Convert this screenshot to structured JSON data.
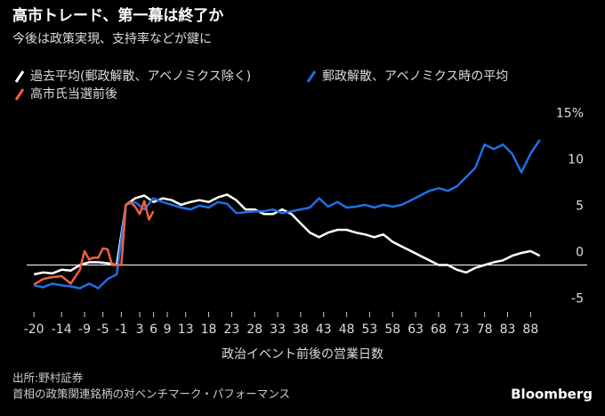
{
  "chart_data": {
    "type": "line",
    "title": "高市トレード、第一幕は終了か",
    "subtitle": "今後は政策実現、支持率などが鍵に",
    "x_label": "政治イベント前後の営業日数",
    "source": "出所:野村証券",
    "note": "首相の政策関連銘柄の対ベンチマーク・パフォーマンス",
    "brand": "Bloomberg",
    "xlim": [
      -21,
      92
    ],
    "xticks": [
      -20,
      -14,
      -9,
      -5,
      -1,
      3,
      6,
      9,
      13,
      18,
      23,
      28,
      33,
      38,
      43,
      48,
      53,
      58,
      63,
      68,
      73,
      78,
      83,
      88
    ],
    "ylim": [
      -6,
      16
    ],
    "yticks": [
      -5,
      0,
      5,
      10,
      {
        "value": 15,
        "label": "15%"
      }
    ],
    "series": [
      {
        "name": "過去平均(郵政解散、アベノミクス除く)",
        "color": "#ffffff",
        "x": [
          -20,
          -18,
          -16,
          -14,
          -12,
          -10,
          -8,
          -6,
          -4,
          -2,
          0,
          2,
          4,
          6,
          8,
          10,
          12,
          14,
          16,
          18,
          20,
          22,
          24,
          26,
          28,
          30,
          32,
          34,
          36,
          38,
          40,
          42,
          44,
          46,
          48,
          50,
          52,
          54,
          56,
          58,
          60,
          62,
          64,
          66,
          68,
          70,
          72,
          74,
          76,
          78,
          80,
          82,
          84,
          86,
          88,
          90
        ],
        "values": [
          -1,
          -0.8,
          -0.9,
          -0.5,
          -0.6,
          0,
          0.3,
          0.3,
          0.2,
          0,
          6.5,
          7.2,
          7.5,
          6.8,
          7.2,
          7,
          6.5,
          6.8,
          7,
          6.8,
          7.3,
          7.6,
          7,
          6,
          6,
          5.5,
          5.5,
          6,
          5.5,
          4.5,
          3.5,
          3,
          3.5,
          3.8,
          3.8,
          3.5,
          3.3,
          3,
          3.3,
          2.5,
          2,
          1.5,
          1,
          0.5,
          0,
          0,
          -0.5,
          -0.8,
          -0.3,
          0,
          0.3,
          0.5,
          1,
          1.3,
          1.5,
          1
        ]
      },
      {
        "name": "郵政解散、アベノミクス時の平均",
        "color": "#1f6fe5",
        "x": [
          -20,
          -18,
          -16,
          -14,
          -12,
          -10,
          -8,
          -6,
          -4,
          -2,
          0,
          2,
          4,
          6,
          8,
          10,
          12,
          14,
          16,
          18,
          20,
          22,
          24,
          26,
          28,
          30,
          32,
          34,
          36,
          38,
          40,
          42,
          44,
          46,
          48,
          50,
          52,
          54,
          56,
          58,
          60,
          62,
          64,
          66,
          68,
          70,
          72,
          74,
          76,
          78,
          80,
          82,
          84,
          86,
          88,
          90
        ],
        "values": [
          -2.2,
          -2.4,
          -2,
          -2.2,
          -2.3,
          -2.5,
          -2,
          -2.5,
          -1.5,
          -1,
          6.5,
          6.8,
          6,
          7.2,
          6.8,
          6.5,
          6.2,
          6,
          6.4,
          6.2,
          6.8,
          6.6,
          5.6,
          5.7,
          5.8,
          5.8,
          6,
          5.6,
          5.8,
          6,
          6.2,
          7.2,
          6.3,
          6.8,
          6.2,
          6.3,
          6.5,
          6.2,
          6.5,
          6.3,
          6.5,
          7,
          7.5,
          8,
          8.3,
          8,
          8.5,
          9.5,
          10.5,
          13,
          12.5,
          13,
          12,
          10,
          12,
          13.5
        ]
      },
      {
        "name": "高市氏当選前後",
        "color": "#f0603a",
        "x": [
          -20,
          -18,
          -16,
          -14,
          -12,
          -10,
          -9,
          -8,
          -7,
          -6,
          -5,
          -4,
          -3,
          -2,
          -1,
          0,
          1,
          2,
          3,
          4,
          5,
          6
        ],
        "values": [
          -2.1,
          -1.5,
          -1.3,
          -1.2,
          -2,
          -0.5,
          1.5,
          0.6,
          0.8,
          0.8,
          1.8,
          1.7,
          0,
          0,
          0,
          6.5,
          6.8,
          6.3,
          5.5,
          6.9,
          4.9,
          5.8
        ]
      }
    ]
  }
}
